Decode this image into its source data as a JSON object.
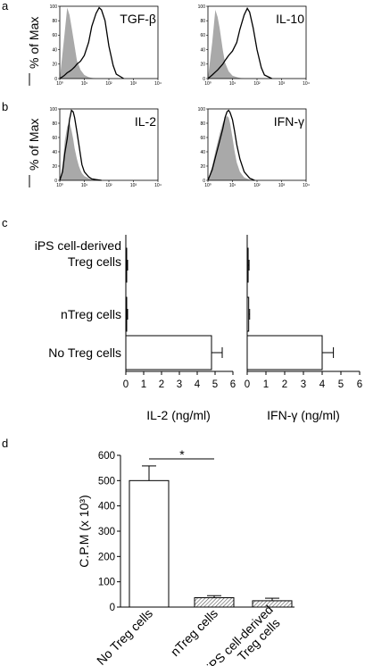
{
  "panel_labels": [
    "a",
    "b",
    "c",
    "d"
  ],
  "histograms": {
    "y_label": "% of Max",
    "y_ticks": [
      "0",
      "20",
      "40",
      "60",
      "80",
      "100"
    ],
    "x_ticks": [
      "10⁰",
      "10¹",
      "10²",
      "10³",
      "10⁴"
    ],
    "fill_color": "#a9a9a9",
    "line_color": "#000000"
  },
  "chart_data": [
    {
      "type": "area",
      "panel": "a",
      "label": "TGF-β",
      "xscale": "log",
      "xlim": [
        1,
        10000
      ],
      "ylim": [
        0,
        100
      ],
      "x": [
        1,
        1.5,
        2,
        2.5,
        3,
        4,
        5,
        7,
        10,
        15,
        20,
        30,
        40,
        50,
        70,
        100,
        150,
        200,
        400
      ],
      "isotype": [
        0,
        55,
        98,
        88,
        72,
        45,
        25,
        12,
        5,
        2,
        1,
        0,
        0,
        0,
        0,
        0,
        0,
        0,
        0
      ],
      "stained": [
        0,
        4,
        8,
        10,
        12,
        16,
        20,
        24,
        32,
        50,
        72,
        90,
        98,
        95,
        80,
        45,
        18,
        6,
        0
      ]
    },
    {
      "type": "area",
      "panel": "a",
      "label": "IL-10",
      "xscale": "log",
      "xlim": [
        1,
        10000
      ],
      "ylim": [
        0,
        100
      ],
      "x": [
        1,
        1.5,
        2,
        2.5,
        3,
        4,
        5,
        7,
        10,
        15,
        20,
        30,
        40,
        50,
        70,
        100,
        150,
        200,
        400
      ],
      "isotype": [
        0,
        50,
        95,
        85,
        70,
        40,
        22,
        10,
        4,
        2,
        1,
        0,
        0,
        0,
        0,
        0,
        0,
        0,
        0
      ],
      "stained": [
        0,
        5,
        9,
        12,
        15,
        20,
        25,
        32,
        38,
        50,
        68,
        88,
        97,
        92,
        70,
        40,
        15,
        5,
        0
      ]
    },
    {
      "type": "area",
      "panel": "b",
      "label": "IL-2",
      "xscale": "log",
      "xlim": [
        1,
        10000
      ],
      "ylim": [
        0,
        100
      ],
      "x": [
        1,
        1.3,
        1.6,
        2,
        2.5,
        3,
        3.5,
        4,
        5,
        6,
        7,
        8,
        10,
        15,
        20,
        30,
        50
      ],
      "isotype": [
        0,
        20,
        55,
        75,
        82,
        70,
        58,
        45,
        30,
        20,
        14,
        10,
        6,
        3,
        1,
        0,
        0
      ],
      "stained": [
        0,
        12,
        38,
        58,
        85,
        98,
        96,
        88,
        68,
        50,
        35,
        22,
        12,
        5,
        2,
        1,
        0
      ]
    },
    {
      "type": "area",
      "panel": "b",
      "label": "IFN-γ",
      "xscale": "log",
      "xlim": [
        1,
        10000
      ],
      "ylim": [
        0,
        100
      ],
      "x": [
        1,
        1.5,
        2,
        3,
        4,
        5,
        6,
        7,
        8,
        10,
        12,
        15,
        20,
        30,
        50,
        80
      ],
      "isotype": [
        0,
        20,
        40,
        65,
        80,
        88,
        90,
        88,
        80,
        60,
        42,
        25,
        12,
        4,
        1,
        0
      ],
      "stained": [
        0,
        15,
        32,
        55,
        72,
        88,
        96,
        98,
        95,
        85,
        70,
        50,
        30,
        12,
        3,
        0
      ]
    },
    {
      "type": "bar",
      "panel": "c",
      "orientation": "horizontal",
      "categories": [
        "iPS cell-derived Treg cells",
        "nTreg cells",
        "No Treg cells"
      ],
      "values": [
        0.05,
        0.05,
        4.8
      ],
      "errors": [
        0.05,
        0.05,
        0.6
      ],
      "xlabel": "IL-2 (ng/ml)",
      "xlim": [
        0,
        6
      ],
      "ticks": [
        "0",
        "1",
        "2",
        "3",
        "4",
        "5",
        "6"
      ]
    },
    {
      "type": "bar",
      "panel": "c",
      "orientation": "horizontal",
      "categories": [
        "iPS cell-derived Treg cells",
        "nTreg cells",
        "No Treg cells"
      ],
      "values": [
        0.05,
        0.08,
        4.0
      ],
      "errors": [
        0.05,
        0.05,
        0.6
      ],
      "xlabel": "IFN-γ (ng/ml)",
      "xlim": [
        0,
        6
      ],
      "ticks": [
        "0",
        "1",
        "2",
        "3",
        "4",
        "5",
        "6"
      ]
    },
    {
      "type": "bar",
      "panel": "d",
      "orientation": "vertical",
      "categories": [
        "No Treg cells",
        "nTreg cells",
        "iPS cell-derived Treg cells"
      ],
      "values": [
        500,
        37,
        25
      ],
      "errors": [
        58,
        8,
        10
      ],
      "ylabel": "C.P.M (x 10³)",
      "ylim": [
        0,
        600
      ],
      "ticks": [
        "0",
        "100",
        "200",
        "300",
        "400",
        "500",
        "600"
      ],
      "significance": "*"
    }
  ]
}
